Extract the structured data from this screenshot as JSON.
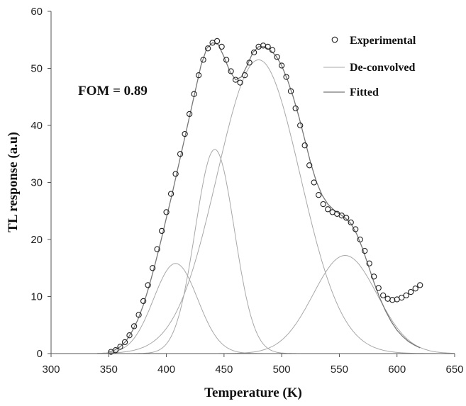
{
  "chart_data": {
    "type": "scatter",
    "xlabel": "Temperature (K)",
    "ylabel": "TL response (a.u)",
    "xlim": [
      300,
      650
    ],
    "ylim": [
      0,
      60
    ],
    "xticks": [
      300,
      350,
      400,
      450,
      500,
      550,
      600,
      650
    ],
    "yticks": [
      0,
      10,
      20,
      30,
      40,
      50,
      60
    ],
    "grid": false,
    "legend_position": "top-right",
    "annotation": "FOM = 0.89",
    "legend": [
      {
        "label": "Experimental",
        "style": "open-circle"
      },
      {
        "label": "De-convolved",
        "style": "thin-line"
      },
      {
        "label": "Fitted",
        "style": "line"
      }
    ],
    "deconvolved_peaks": [
      {
        "center": 408,
        "height": 15.8,
        "fwhm": 45
      },
      {
        "center": 442,
        "height": 35.8,
        "fwhm": 40
      },
      {
        "center": 480,
        "height": 51.5,
        "fwhm": 85
      },
      {
        "center": 555,
        "height": 17.2,
        "fwhm": 65
      }
    ],
    "series": [
      {
        "name": "Experimental",
        "x": [
          352,
          356,
          360,
          364,
          368,
          372,
          376,
          380,
          384,
          388,
          392,
          396,
          400,
          404,
          408,
          412,
          416,
          420,
          424,
          428,
          432,
          436,
          440,
          444,
          448,
          452,
          456,
          460,
          464,
          468,
          472,
          476,
          480,
          484,
          488,
          492,
          496,
          500,
          504,
          508,
          512,
          516,
          520,
          524,
          528,
          532,
          536,
          540,
          544,
          548,
          552,
          556,
          560,
          564,
          568,
          572,
          576,
          580,
          584,
          588,
          592,
          596,
          600,
          604,
          608,
          612,
          616,
          620
        ],
        "y": [
          0.3,
          0.6,
          1.2,
          2,
          3.2,
          4.8,
          6.8,
          9.2,
          12,
          15,
          18.3,
          21.5,
          24.8,
          28,
          31.5,
          35,
          38.5,
          42,
          45.5,
          48.8,
          51.5,
          53.5,
          54.5,
          54.8,
          53.8,
          51.5,
          49.5,
          48,
          47.5,
          48.8,
          51,
          52.8,
          53.8,
          54,
          53.8,
          53.2,
          52,
          50.5,
          48.5,
          46,
          43,
          40,
          36.5,
          33,
          30,
          27.8,
          26.2,
          25.3,
          24.8,
          24.5,
          24.2,
          23.8,
          23,
          21.8,
          20,
          18,
          15.8,
          13.5,
          11.5,
          10.2,
          9.6,
          9.4,
          9.5,
          9.8,
          10.2,
          10.8,
          11.4,
          12
        ]
      },
      {
        "name": "Fitted",
        "x": [
          350,
          355,
          360,
          365,
          370,
          375,
          380,
          385,
          390,
          395,
          400,
          405,
          410,
          415,
          420,
          425,
          430,
          435,
          440,
          445,
          450,
          455,
          460,
          465,
          470,
          475,
          480,
          485,
          490,
          495,
          500,
          505,
          510,
          515,
          520,
          525,
          530,
          535,
          540,
          545,
          550,
          555,
          560,
          565,
          570,
          575,
          580,
          585,
          590,
          595,
          600,
          605,
          610,
          615,
          620
        ],
        "y": [
          0.3,
          0.6,
          1.2,
          2.2,
          3.8,
          5.8,
          8.5,
          11.8,
          15.5,
          19.5,
          23.8,
          28,
          32.5,
          37,
          41.5,
          46,
          50.5,
          53.5,
          54.5,
          54.2,
          52,
          49.5,
          48,
          48.5,
          50.5,
          52.8,
          53.8,
          53.8,
          53.2,
          52.2,
          50.5,
          48,
          45,
          41.5,
          37.5,
          33.5,
          30.2,
          27.8,
          26.2,
          25.2,
          24.5,
          23.8,
          22.8,
          21,
          18.5,
          15.5,
          12.5,
          9.8,
          7.5,
          5.6,
          4.1,
          3,
          2.1,
          1.5,
          1
        ]
      }
    ]
  }
}
